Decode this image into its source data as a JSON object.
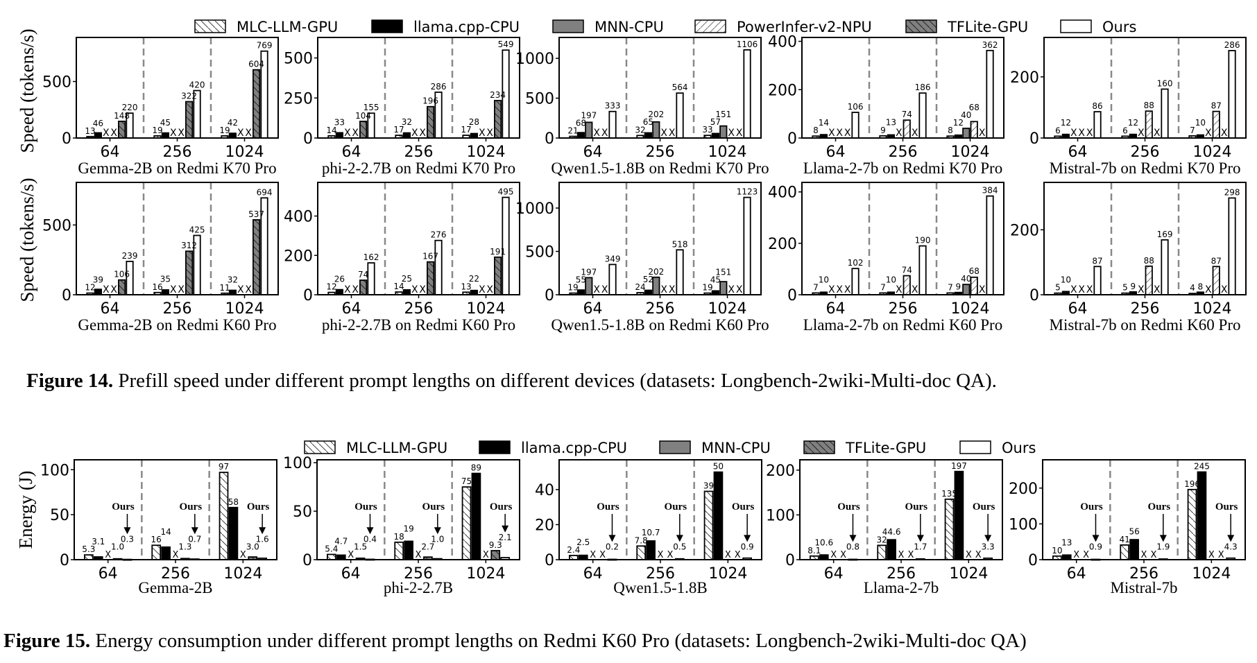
{
  "figure14": {
    "legend": [
      {
        "name": "MLC-LLM-GPU",
        "style": "hatch-back",
        "color": "#ffffff"
      },
      {
        "name": "llama.cpp-CPU",
        "style": "solid",
        "color": "#000000"
      },
      {
        "name": "MNN-CPU",
        "style": "solid",
        "color": "#808080"
      },
      {
        "name": "PowerInfer-v2-NPU",
        "style": "hatch-forward",
        "color": "#ffffff"
      },
      {
        "name": "TFLite-GPU",
        "style": "hatch-back",
        "color": "#808080"
      },
      {
        "name": "Ours",
        "style": "solid",
        "color": "#ffffff"
      }
    ],
    "ylabel": "Speed (tokens/s)",
    "caption_label": "Figure 14.",
    "caption_text": " Prefill speed under different prompt lengths on different devices (datasets: Longbench-2wiki-Multi-doc QA)."
  },
  "figure15": {
    "legend": [
      {
        "name": "MLC-LLM-GPU",
        "style": "hatch-back",
        "color": "#ffffff"
      },
      {
        "name": "llama.cpp-CPU",
        "style": "solid",
        "color": "#000000"
      },
      {
        "name": "MNN-CPU",
        "style": "solid",
        "color": "#808080"
      },
      {
        "name": "TFLite-GPU",
        "style": "hatch-back",
        "color": "#808080"
      },
      {
        "name": "Ours",
        "style": "solid",
        "color": "#ffffff"
      }
    ],
    "ylabel": "Energy (J)",
    "annotation": "Ours",
    "caption_label": "Figure 15.",
    "caption_text": " Energy consumption under different prompt lengths on Redmi K60 Pro (datasets: Longbench-2wiki-Multi-doc QA)"
  },
  "unsupported_marker": "X",
  "chart_data": [
    {
      "type": "bar",
      "figure": "figure14",
      "title": "Gemma-2B on Redmi K70 Pro",
      "categories": [
        "64",
        "256",
        "1024"
      ],
      "ylim": [
        0,
        890
      ],
      "yticks": [
        0,
        500
      ],
      "series": [
        {
          "name": "MLC-LLM-GPU",
          "values": [
            13,
            19,
            19
          ]
        },
        {
          "name": "llama.cpp-CPU",
          "values": [
            46,
            45,
            42
          ]
        },
        {
          "name": "MNN-CPU",
          "values": [
            null,
            null,
            null
          ]
        },
        {
          "name": "PowerInfer-v2-NPU",
          "values": [
            null,
            null,
            null
          ]
        },
        {
          "name": "TFLite-GPU",
          "values": [
            148,
            322,
            604
          ]
        },
        {
          "name": "Ours",
          "values": [
            220,
            420,
            769
          ]
        }
      ]
    },
    {
      "type": "bar",
      "figure": "figure14",
      "title": "phi-2-2.7B on Redmi K70 Pro",
      "categories": [
        "64",
        "256",
        "1024"
      ],
      "ylim": [
        0,
        628
      ],
      "yticks": [
        0,
        250,
        500
      ],
      "series": [
        {
          "name": "MLC-LLM-GPU",
          "values": [
            14,
            17,
            17
          ]
        },
        {
          "name": "llama.cpp-CPU",
          "values": [
            33,
            32,
            28
          ]
        },
        {
          "name": "MNN-CPU",
          "values": [
            null,
            null,
            null
          ]
        },
        {
          "name": "PowerInfer-v2-NPU",
          "values": [
            null,
            null,
            null
          ]
        },
        {
          "name": "TFLite-GPU",
          "values": [
            104,
            196,
            234
          ]
        },
        {
          "name": "Ours",
          "values": [
            155,
            286,
            549
          ]
        }
      ]
    },
    {
      "type": "bar",
      "figure": "figure14",
      "title": "Qwen1.5-1.8B on Redmi K70 Pro",
      "categories": [
        "64",
        "256",
        "1024"
      ],
      "ylim": [
        0,
        1262
      ],
      "yticks": [
        0,
        500,
        1000
      ],
      "series": [
        {
          "name": "MLC-LLM-GPU",
          "values": [
            21,
            32,
            33
          ]
        },
        {
          "name": "llama.cpp-CPU",
          "values": [
            68,
            65,
            57
          ]
        },
        {
          "name": "MNN-CPU",
          "values": [
            197,
            202,
            151
          ]
        },
        {
          "name": "PowerInfer-v2-NPU",
          "values": [
            null,
            null,
            null
          ]
        },
        {
          "name": "TFLite-GPU",
          "values": [
            null,
            null,
            null
          ]
        },
        {
          "name": "Ours",
          "values": [
            333,
            564,
            1106
          ]
        }
      ]
    },
    {
      "type": "bar",
      "figure": "figure14",
      "title": "Llama-2-7b on Redmi K70 Pro",
      "categories": [
        "64",
        "256",
        "1024"
      ],
      "ylim": [
        0,
        416
      ],
      "yticks": [
        0,
        200,
        400
      ],
      "series": [
        {
          "name": "MLC-LLM-GPU",
          "values": [
            8,
            9,
            8
          ]
        },
        {
          "name": "llama.cpp-CPU",
          "values": [
            14,
            13,
            12
          ]
        },
        {
          "name": "MNN-CPU",
          "values": [
            null,
            null,
            40
          ]
        },
        {
          "name": "PowerInfer-v2-NPU",
          "values": [
            null,
            74,
            68
          ]
        },
        {
          "name": "TFLite-GPU",
          "values": [
            null,
            null,
            null
          ]
        },
        {
          "name": "Ours",
          "values": [
            106,
            186,
            362
          ]
        }
      ]
    },
    {
      "type": "bar",
      "figure": "figure14",
      "title": "Mistral-7b on Redmi K70 Pro",
      "categories": [
        "64",
        "256",
        "1024"
      ],
      "ylim": [
        0,
        329
      ],
      "yticks": [
        0,
        200
      ],
      "series": [
        {
          "name": "MLC-LLM-GPU",
          "values": [
            6,
            6,
            7
          ]
        },
        {
          "name": "llama.cpp-CPU",
          "values": [
            12,
            12,
            10
          ]
        },
        {
          "name": "MNN-CPU",
          "values": [
            null,
            null,
            null
          ]
        },
        {
          "name": "PowerInfer-v2-NPU",
          "values": [
            null,
            88,
            87
          ]
        },
        {
          "name": "TFLite-GPU",
          "values": [
            null,
            null,
            null
          ]
        },
        {
          "name": "Ours",
          "values": [
            86,
            160,
            286
          ]
        }
      ]
    },
    {
      "type": "bar",
      "figure": "figure14",
      "title": "Gemma-2B on Redmi K60 Pro",
      "categories": [
        "64",
        "256",
        "1024"
      ],
      "ylim": [
        0,
        805
      ],
      "yticks": [
        0,
        500
      ],
      "series": [
        {
          "name": "MLC-LLM-GPU",
          "values": [
            12,
            16,
            11
          ]
        },
        {
          "name": "llama.cpp-CPU",
          "values": [
            39,
            35,
            32
          ]
        },
        {
          "name": "MNN-CPU",
          "values": [
            null,
            null,
            null
          ]
        },
        {
          "name": "PowerInfer-v2-NPU",
          "values": [
            null,
            null,
            null
          ]
        },
        {
          "name": "TFLite-GPU",
          "values": [
            106,
            312,
            537
          ]
        },
        {
          "name": "Ours",
          "values": [
            239,
            425,
            694
          ]
        }
      ]
    },
    {
      "type": "bar",
      "figure": "figure14",
      "title": "phi-2-2.7B on Redmi K60 Pro",
      "categories": [
        "64",
        "256",
        "1024"
      ],
      "ylim": [
        0,
        571
      ],
      "yticks": [
        0,
        200,
        400
      ],
      "series": [
        {
          "name": "MLC-LLM-GPU",
          "values": [
            12,
            14,
            13
          ]
        },
        {
          "name": "llama.cpp-CPU",
          "values": [
            26,
            25,
            22
          ]
        },
        {
          "name": "MNN-CPU",
          "values": [
            null,
            null,
            null
          ]
        },
        {
          "name": "PowerInfer-v2-NPU",
          "values": [
            null,
            null,
            null
          ]
        },
        {
          "name": "TFLite-GPU",
          "values": [
            74,
            167,
            191
          ]
        },
        {
          "name": "Ours",
          "values": [
            162,
            276,
            495
          ]
        }
      ]
    },
    {
      "type": "bar",
      "figure": "figure14",
      "title": "Qwen1.5-1.8B on Redmi K60 Pro",
      "categories": [
        "64",
        "256",
        "1024"
      ],
      "ylim": [
        0,
        1296
      ],
      "yticks": [
        0,
        500,
        1000
      ],
      "series": [
        {
          "name": "MLC-LLM-GPU",
          "values": [
            19,
            24,
            19
          ]
        },
        {
          "name": "llama.cpp-CPU",
          "values": [
            55,
            52,
            45
          ]
        },
        {
          "name": "MNN-CPU",
          "values": [
            197,
            202,
            151
          ]
        },
        {
          "name": "PowerInfer-v2-NPU",
          "values": [
            null,
            null,
            null
          ]
        },
        {
          "name": "TFLite-GPU",
          "values": [
            null,
            null,
            null
          ]
        },
        {
          "name": "Ours",
          "values": [
            349,
            518,
            1123
          ]
        }
      ]
    },
    {
      "type": "bar",
      "figure": "figure14",
      "title": "Llama-2-7b on Redmi K60 Pro",
      "categories": [
        "64",
        "256",
        "1024"
      ],
      "ylim": [
        0,
        437
      ],
      "yticks": [
        0,
        200,
        400
      ],
      "series": [
        {
          "name": "MLC-LLM-GPU",
          "values": [
            7,
            7,
            7
          ]
        },
        {
          "name": "llama.cpp-CPU",
          "values": [
            10,
            10,
            9
          ]
        },
        {
          "name": "MNN-CPU",
          "values": [
            null,
            null,
            40
          ]
        },
        {
          "name": "PowerInfer-v2-NPU",
          "values": [
            null,
            74,
            68
          ]
        },
        {
          "name": "TFLite-GPU",
          "values": [
            null,
            null,
            null
          ]
        },
        {
          "name": "Ours",
          "values": [
            102,
            190,
            384
          ]
        }
      ]
    },
    {
      "type": "bar",
      "figure": "figure14",
      "title": "Mistral-7b on Redmi K60 Pro",
      "categories": [
        "64",
        "256",
        "1024"
      ],
      "ylim": [
        0,
        346
      ],
      "yticks": [
        0,
        200
      ],
      "series": [
        {
          "name": "MLC-LLM-GPU",
          "values": [
            5,
            5,
            4
          ]
        },
        {
          "name": "llama.cpp-CPU",
          "values": [
            10,
            9,
            8
          ]
        },
        {
          "name": "MNN-CPU",
          "values": [
            null,
            null,
            null
          ]
        },
        {
          "name": "PowerInfer-v2-NPU",
          "values": [
            null,
            88,
            87
          ]
        },
        {
          "name": "TFLite-GPU",
          "values": [
            null,
            null,
            null
          ]
        },
        {
          "name": "Ours",
          "values": [
            87,
            169,
            298
          ]
        }
      ]
    },
    {
      "type": "bar",
      "figure": "figure15",
      "title": "Gemma-2B",
      "categories": [
        "64",
        "256",
        "1024"
      ],
      "ylim": [
        0,
        111
      ],
      "yticks": [
        0,
        50,
        100
      ],
      "series": [
        {
          "name": "MLC-LLM-GPU",
          "values": [
            5.3,
            16,
            97
          ]
        },
        {
          "name": "llama.cpp-CPU",
          "values": [
            3.1,
            14,
            58
          ]
        },
        {
          "name": "MNN-CPU",
          "values": [
            null,
            null,
            null
          ]
        },
        {
          "name": "TFLite-GPU",
          "values": [
            1.0,
            1.3,
            3.0
          ]
        },
        {
          "name": "Ours",
          "values": [
            0.3,
            0.7,
            1.6
          ]
        }
      ]
    },
    {
      "type": "bar",
      "figure": "figure15",
      "title": "phi-2-2.7B",
      "categories": [
        "64",
        "256",
        "1024"
      ],
      "ylim": [
        0,
        103
      ],
      "yticks": [
        0,
        50,
        100
      ],
      "series": [
        {
          "name": "MLC-LLM-GPU",
          "values": [
            5.4,
            18,
            75
          ]
        },
        {
          "name": "llama.cpp-CPU",
          "values": [
            4.7,
            19,
            89
          ]
        },
        {
          "name": "MNN-CPU",
          "values": [
            null,
            null,
            null
          ]
        },
        {
          "name": "TFLite-GPU",
          "values": [
            1.5,
            2.7,
            9.3
          ]
        },
        {
          "name": "Ours",
          "values": [
            0.4,
            1.0,
            2.1
          ]
        }
      ]
    },
    {
      "type": "bar",
      "figure": "figure15",
      "title": "Qwen1.5-1.8B",
      "categories": [
        "64",
        "256",
        "1024"
      ],
      "ylim": [
        0,
        57
      ],
      "yticks": [
        0,
        20,
        40
      ],
      "series": [
        {
          "name": "MLC-LLM-GPU",
          "values": [
            2.4,
            7.8,
            39
          ]
        },
        {
          "name": "llama.cpp-CPU",
          "values": [
            2.5,
            10.7,
            50
          ]
        },
        {
          "name": "MNN-CPU",
          "values": [
            null,
            null,
            null
          ]
        },
        {
          "name": "TFLite-GPU",
          "values": [
            null,
            null,
            null
          ]
        },
        {
          "name": "Ours",
          "values": [
            0.2,
            0.5,
            0.9
          ]
        }
      ]
    },
    {
      "type": "bar",
      "figure": "figure15",
      "title": "Llama-2-7b",
      "categories": [
        "64",
        "256",
        "1024"
      ],
      "ylim": [
        0,
        223
      ],
      "yticks": [
        0,
        100,
        200
      ],
      "series": [
        {
          "name": "MLC-LLM-GPU",
          "values": [
            8.1,
            32,
            135
          ]
        },
        {
          "name": "llama.cpp-CPU",
          "values": [
            10.6,
            44.6,
            197
          ]
        },
        {
          "name": "MNN-CPU",
          "values": [
            null,
            null,
            null
          ]
        },
        {
          "name": "TFLite-GPU",
          "values": [
            null,
            null,
            null
          ]
        },
        {
          "name": "Ours",
          "values": [
            0.8,
            1.7,
            3.3
          ]
        }
      ]
    },
    {
      "type": "bar",
      "figure": "figure15",
      "title": "Mistral-7b",
      "categories": [
        "64",
        "256",
        "1024"
      ],
      "ylim": [
        0,
        279
      ],
      "yticks": [
        0,
        100,
        200
      ],
      "series": [
        {
          "name": "MLC-LLM-GPU",
          "values": [
            10,
            41,
            196
          ]
        },
        {
          "name": "llama.cpp-CPU",
          "values": [
            13,
            56,
            245
          ]
        },
        {
          "name": "MNN-CPU",
          "values": [
            null,
            null,
            null
          ]
        },
        {
          "name": "TFLite-GPU",
          "values": [
            null,
            null,
            null
          ]
        },
        {
          "name": "Ours",
          "values": [
            0.9,
            1.9,
            4.3
          ]
        }
      ]
    }
  ]
}
